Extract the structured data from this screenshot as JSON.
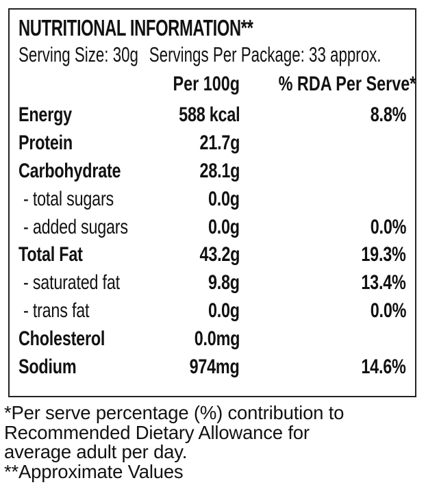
{
  "colors": {
    "background": "#ffffff",
    "text": "#111111",
    "border": "#222222"
  },
  "label": {
    "title": "NUTRITIONAL INFORMATION**",
    "serving_size": "Serving Size: 30g",
    "servings_per_package": "Servings Per Package: 33 approx.",
    "columns": {
      "amount": "Per 100g",
      "rda": "% RDA Per Serve*"
    },
    "rows": [
      {
        "name": "Energy",
        "per_100g": "588 kcal",
        "rda_per_serve": "8.8%",
        "indent": false
      },
      {
        "name": "Protein",
        "per_100g": "21.7g",
        "rda_per_serve": "",
        "indent": false
      },
      {
        "name": "Carbohydrate",
        "per_100g": "28.1g",
        "rda_per_serve": "",
        "indent": false
      },
      {
        "name": "- total sugars",
        "per_100g": "0.0g",
        "rda_per_serve": "",
        "indent": true
      },
      {
        "name": "- added sugars",
        "per_100g": "0.0g",
        "rda_per_serve": "0.0%",
        "indent": true
      },
      {
        "name": "Total Fat",
        "per_100g": "43.2g",
        "rda_per_serve": "19.3%",
        "indent": false
      },
      {
        "name": "- saturated fat",
        "per_100g": "9.8g",
        "rda_per_serve": "13.4%",
        "indent": true
      },
      {
        "name": "- trans fat",
        "per_100g": "0.0g",
        "rda_per_serve": "0.0%",
        "indent": true
      },
      {
        "name": "Cholesterol",
        "per_100g": "0.0mg",
        "rda_per_serve": "",
        "indent": false
      },
      {
        "name": "Sodium",
        "per_100g": "974mg",
        "rda_per_serve": "14.6%",
        "indent": false
      }
    ],
    "footnote_lines": [
      "*Per serve percentage (%) contribution to",
      "Recommended Dietary Allowance for",
      "average adult per day.",
      "**Approximate Values"
    ]
  }
}
